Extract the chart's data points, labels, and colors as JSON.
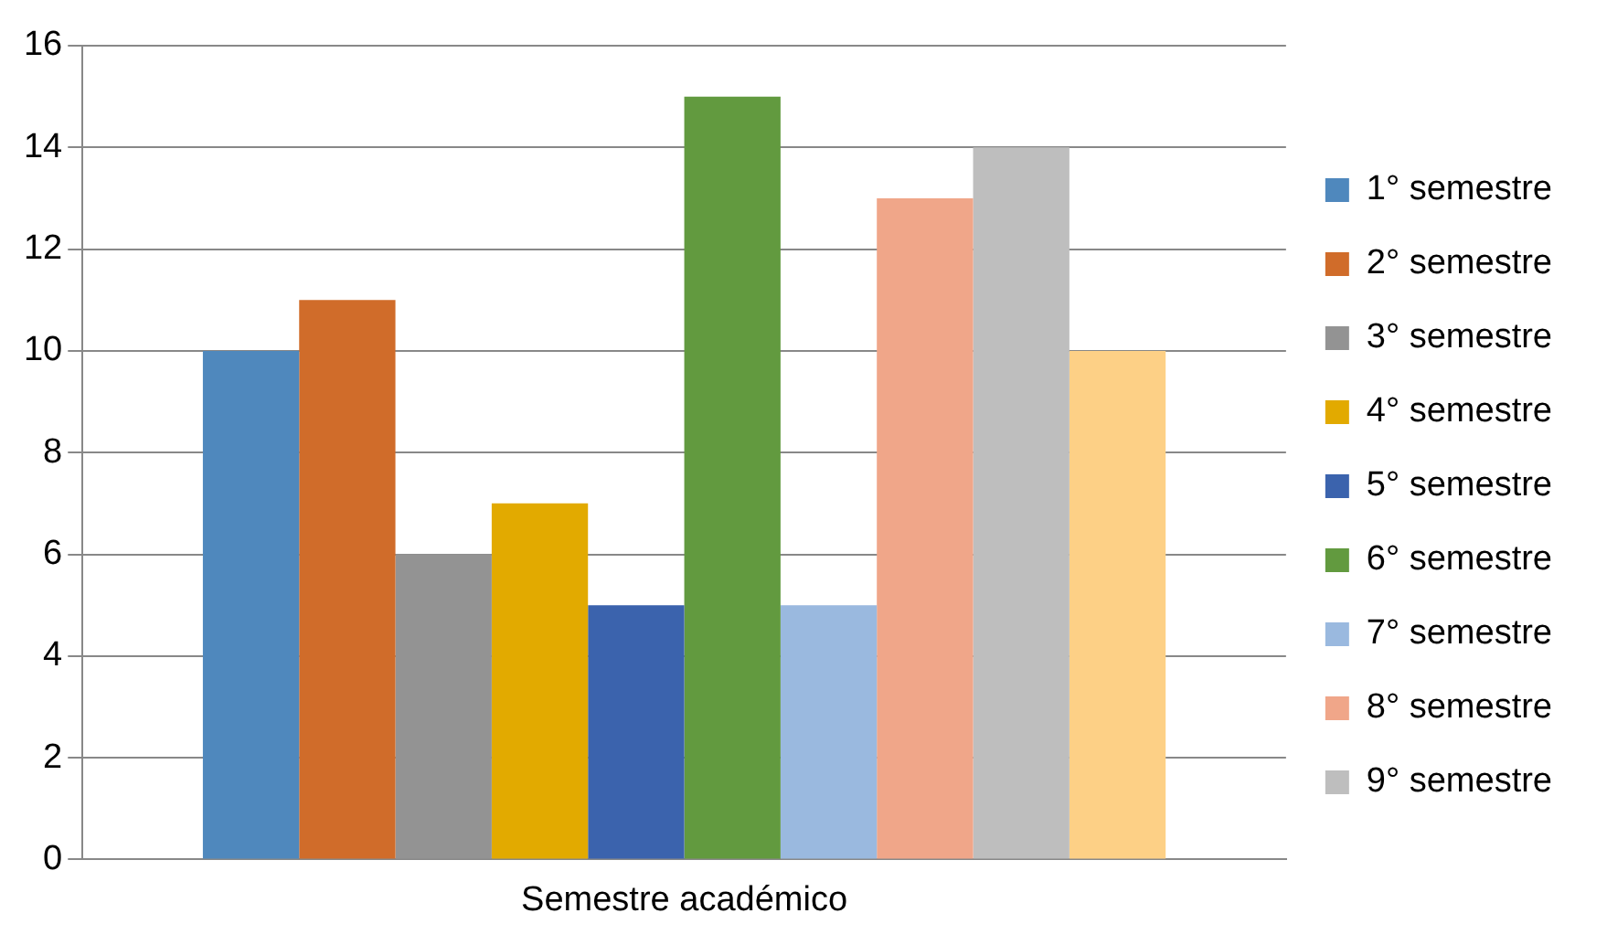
{
  "chart_data": {
    "type": "bar",
    "categories": [
      "Semestre académico"
    ],
    "series": [
      {
        "name": "1° semestre",
        "color": "#4f88bd",
        "values": [
          10
        ]
      },
      {
        "name": "2° semestre",
        "color": "#d06c2a",
        "values": [
          11
        ]
      },
      {
        "name": "3° semestre",
        "color": "#939393",
        "values": [
          6
        ]
      },
      {
        "name": "4° semestre",
        "color": "#e2aa00",
        "values": [
          7
        ]
      },
      {
        "name": "5° semestre",
        "color": "#3b63ad",
        "values": [
          5
        ]
      },
      {
        "name": "6° semestre",
        "color": "#629a3f",
        "values": [
          15
        ]
      },
      {
        "name": "7° semestre",
        "color": "#9ab9df",
        "values": [
          5
        ]
      },
      {
        "name": "8° semestre",
        "color": "#f0a689",
        "values": [
          13
        ]
      },
      {
        "name": "9° semestre",
        "color": "#bebebe",
        "values": [
          14
        ]
      },
      {
        "color": "#fdd086",
        "values": [
          10
        ]
      }
    ],
    "ylim": [
      0,
      16
    ],
    "yticks": [
      0,
      2,
      4,
      6,
      8,
      10,
      12,
      14,
      16
    ],
    "grid": "y",
    "legend": "right"
  }
}
